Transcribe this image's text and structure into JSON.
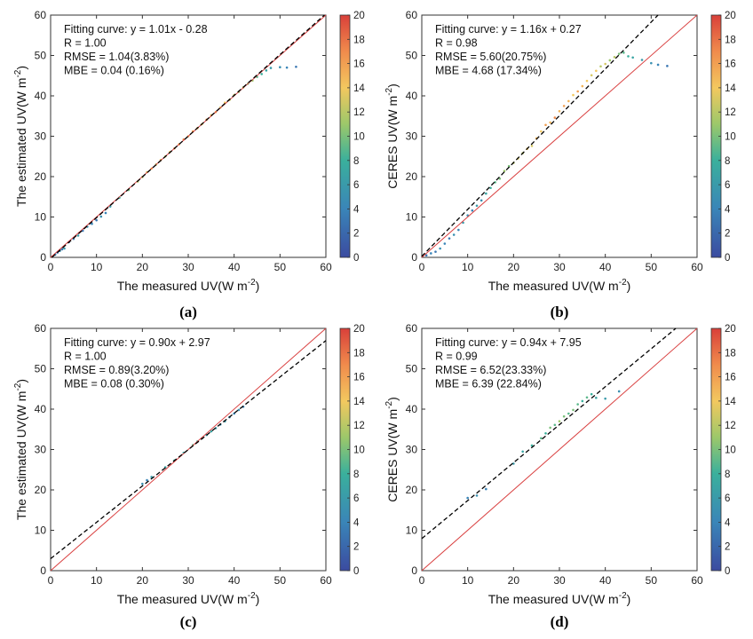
{
  "chart_data": [
    {
      "panel_label": "(a)",
      "type": "scatter",
      "xlabel": "The measured UV(W m",
      "xlabel_sup": "-2",
      "xlabel_tail": ")",
      "ylabel": "The estimated UV(W m",
      "ylabel_sup": "-2",
      "ylabel_tail": ")",
      "xlim": [
        0,
        60
      ],
      "ylim": [
        0,
        60
      ],
      "xticks": [
        0,
        10,
        20,
        30,
        40,
        50,
        60
      ],
      "yticks": [
        0,
        10,
        20,
        30,
        40,
        50,
        60
      ],
      "annotations": [
        "Fitting curve: y = 1.01x - 0.28",
        "R = 1.00",
        "RMSE = 1.04(3.83%)",
        "MBE = 0.04 (0.16%)"
      ],
      "fit": {
        "slope": 1.01,
        "intercept": -0.28
      },
      "colorbar": {
        "min": 0,
        "max": 20,
        "ticks": [
          0,
          2,
          4,
          6,
          8,
          10,
          12,
          14,
          16,
          18,
          20
        ]
      },
      "points": [
        [
          1,
          0.7,
          4
        ],
        [
          1.5,
          1.2,
          3
        ],
        [
          2,
          1.6,
          5
        ],
        [
          2.5,
          2,
          3
        ],
        [
          3,
          2.2,
          6
        ],
        [
          4,
          3.8,
          3
        ],
        [
          5,
          4.6,
          4
        ],
        [
          6,
          5.4,
          6
        ],
        [
          7,
          6.6,
          3
        ],
        [
          8,
          7.6,
          5
        ],
        [
          9,
          8.3,
          4
        ],
        [
          10,
          9.2,
          3
        ],
        [
          11,
          10.1,
          5
        ],
        [
          12,
          11,
          4
        ],
        [
          13,
          12.6,
          6
        ],
        [
          15,
          14.8,
          8
        ],
        [
          17,
          16.7,
          10
        ],
        [
          19,
          18.8,
          12
        ],
        [
          20,
          19.9,
          11
        ],
        [
          21,
          21.1,
          13
        ],
        [
          22,
          22,
          14
        ],
        [
          23,
          23,
          12
        ],
        [
          24,
          24.1,
          15
        ],
        [
          25,
          25,
          13
        ],
        [
          26,
          26.1,
          14
        ],
        [
          27,
          27,
          16
        ],
        [
          28,
          28,
          15
        ],
        [
          29,
          29.2,
          17
        ],
        [
          30,
          30,
          15
        ],
        [
          31,
          31.2,
          16
        ],
        [
          32,
          32,
          15
        ],
        [
          33,
          33,
          14
        ],
        [
          34,
          34.1,
          16
        ],
        [
          35,
          35.2,
          14
        ],
        [
          36,
          36,
          15
        ],
        [
          37,
          37.1,
          13
        ],
        [
          38,
          38.3,
          14
        ],
        [
          39,
          39,
          12
        ],
        [
          40,
          40.2,
          13
        ],
        [
          41,
          41,
          11
        ],
        [
          42,
          42.1,
          12
        ],
        [
          43,
          43,
          10
        ],
        [
          44,
          43.8,
          11
        ],
        [
          45,
          44.7,
          9
        ],
        [
          46,
          45.4,
          8
        ],
        [
          47,
          46.3,
          7
        ],
        [
          48,
          46.9,
          6
        ],
        [
          50,
          47.1,
          5
        ],
        [
          51.5,
          47,
          4
        ],
        [
          53.5,
          47.2,
          3
        ]
      ]
    },
    {
      "panel_label": "(b)",
      "type": "scatter",
      "xlabel": "The measured UV(W m",
      "xlabel_sup": "-2",
      "xlabel_tail": ")",
      "ylabel": "CERES UV(W m",
      "ylabel_sup": "-2",
      "ylabel_tail": ")",
      "xlim": [
        0,
        60
      ],
      "ylim": [
        0,
        60
      ],
      "xticks": [
        0,
        10,
        20,
        30,
        40,
        50,
        60
      ],
      "yticks": [
        0,
        10,
        20,
        30,
        40,
        50,
        60
      ],
      "annotations": [
        "Fitting curve: y = 1.16x + 0.27",
        "R = 0.98",
        "RMSE = 5.60(20.75%)",
        "MBE = 4.68 (17.34%)"
      ],
      "fit": {
        "slope": 1.16,
        "intercept": 0.27
      },
      "colorbar": {
        "min": 0,
        "max": 20,
        "ticks": [
          0,
          2,
          4,
          6,
          8,
          10,
          12,
          14,
          16,
          18,
          20
        ]
      },
      "points": [
        [
          1,
          0.5,
          3
        ],
        [
          2,
          1,
          4
        ],
        [
          3,
          1.4,
          3
        ],
        [
          4,
          2.2,
          5
        ],
        [
          5,
          3.4,
          4
        ],
        [
          6,
          4.7,
          3
        ],
        [
          7,
          5.6,
          5
        ],
        [
          8,
          6.8,
          4
        ],
        [
          9,
          8.6,
          6
        ],
        [
          10,
          10.4,
          5
        ],
        [
          11,
          11.6,
          4
        ],
        [
          12,
          12.8,
          6
        ],
        [
          13,
          14.1,
          5
        ],
        [
          14,
          15.8,
          7
        ],
        [
          15,
          17.2,
          8
        ],
        [
          16,
          18.6,
          9
        ],
        [
          17,
          19.5,
          10
        ],
        [
          18,
          21.4,
          11
        ],
        [
          19,
          22.6,
          10
        ],
        [
          20,
          23.4,
          12
        ],
        [
          21,
          24.5,
          13
        ],
        [
          22,
          25.8,
          12
        ],
        [
          23,
          26.9,
          14
        ],
        [
          24,
          27.6,
          13
        ],
        [
          25,
          29.5,
          15
        ],
        [
          26,
          31.2,
          14
        ],
        [
          27,
          32.8,
          16
        ],
        [
          28,
          33.4,
          15
        ],
        [
          29,
          34.6,
          17
        ],
        [
          30,
          36.2,
          15
        ],
        [
          31,
          37.5,
          16
        ],
        [
          32,
          38.7,
          15
        ],
        [
          33,
          40.2,
          14
        ],
        [
          34,
          41.1,
          16
        ],
        [
          35,
          42.4,
          15
        ],
        [
          36,
          43.7,
          14
        ],
        [
          37,
          45.1,
          13
        ],
        [
          38,
          46.2,
          14
        ],
        [
          39,
          47.3,
          12
        ],
        [
          40,
          47.9,
          13
        ],
        [
          41,
          48.8,
          11
        ],
        [
          42,
          49.6,
          12
        ],
        [
          43,
          50.4,
          10
        ],
        [
          44,
          50.7,
          9
        ],
        [
          45,
          49.8,
          8
        ],
        [
          46,
          49.5,
          7
        ],
        [
          48,
          48.9,
          6
        ],
        [
          50,
          48.1,
          5
        ],
        [
          51.5,
          47.7,
          4
        ],
        [
          53.5,
          47.4,
          3
        ]
      ]
    },
    {
      "panel_label": "(c)",
      "type": "scatter",
      "xlabel": "The measured UV(W m",
      "xlabel_sup": "-2",
      "xlabel_tail": ")",
      "ylabel": "The estimated UV(W m",
      "ylabel_sup": "-2",
      "ylabel_tail": ")",
      "xlim": [
        0,
        60
      ],
      "ylim": [
        0,
        60
      ],
      "xticks": [
        0,
        10,
        20,
        30,
        40,
        50,
        60
      ],
      "yticks": [
        0,
        10,
        20,
        30,
        40,
        50,
        60
      ],
      "annotations": [
        "Fitting curve: y = 0.90x + 2.97",
        "R = 1.00",
        "RMSE = 0.89(3.20%)",
        "MBE = 0.08 (0.30%)"
      ],
      "fit": {
        "slope": 0.9,
        "intercept": 2.97
      },
      "colorbar": {
        "min": 0,
        "max": 20,
        "ticks": [
          0,
          2,
          4,
          6,
          8,
          10,
          12,
          14,
          16,
          18,
          20
        ]
      },
      "points": [
        [
          20,
          21.5,
          5
        ],
        [
          21,
          22.4,
          4
        ],
        [
          22,
          23.2,
          6
        ],
        [
          25,
          25.6,
          7
        ],
        [
          27,
          27.3,
          8
        ],
        [
          29,
          29.2,
          7
        ],
        [
          31,
          31.1,
          9
        ],
        [
          32,
          32,
          8
        ],
        [
          33,
          32.8,
          7
        ],
        [
          34,
          33.6,
          6
        ],
        [
          35,
          34.5,
          7
        ],
        [
          36,
          35.3,
          6
        ],
        [
          37,
          36.2,
          5
        ],
        [
          38,
          37,
          6
        ],
        [
          39,
          38,
          5
        ],
        [
          40,
          38.9,
          4
        ],
        [
          41,
          39.8,
          5
        ],
        [
          42,
          40.6,
          4
        ]
      ]
    },
    {
      "panel_label": "(d)",
      "type": "scatter",
      "xlabel": "The measured UV(W m",
      "xlabel_sup": "-2",
      "xlabel_tail": ")",
      "ylabel": "CERES UV(W m",
      "ylabel_sup": "-2",
      "ylabel_tail": ")",
      "xlim": [
        0,
        60
      ],
      "ylim": [
        0,
        60
      ],
      "xticks": [
        0,
        10,
        20,
        30,
        40,
        50,
        60
      ],
      "yticks": [
        0,
        10,
        20,
        30,
        40,
        50,
        60
      ],
      "annotations": [
        "Fitting curve: y = 0.94x + 7.95",
        "R = 0.99",
        "RMSE = 6.52(23.33%)",
        "MBE = 6.39 (22.84%)"
      ],
      "fit": {
        "slope": 0.94,
        "intercept": 7.95
      },
      "colorbar": {
        "min": 0,
        "max": 20,
        "ticks": [
          0,
          2,
          4,
          6,
          8,
          10,
          12,
          14,
          16,
          18,
          20
        ]
      },
      "points": [
        [
          10,
          18,
          4
        ],
        [
          12,
          18.6,
          5
        ],
        [
          14,
          20.2,
          4
        ],
        [
          20,
          26.5,
          6
        ],
        [
          22,
          29.5,
          7
        ],
        [
          24,
          31,
          8
        ],
        [
          26,
          32.8,
          9
        ],
        [
          27,
          34,
          8
        ],
        [
          28,
          35.4,
          10
        ],
        [
          29,
          36.1,
          9
        ],
        [
          30,
          37,
          11
        ],
        [
          31,
          38.2,
          10
        ],
        [
          32,
          38.9,
          9
        ],
        [
          33,
          39.8,
          10
        ],
        [
          34,
          41.2,
          9
        ],
        [
          35,
          42,
          8
        ],
        [
          36,
          42.9,
          9
        ],
        [
          37,
          43.7,
          8
        ],
        [
          38,
          42.8,
          7
        ],
        [
          40,
          42.6,
          6
        ],
        [
          43,
          44.4,
          5
        ]
      ]
    }
  ]
}
